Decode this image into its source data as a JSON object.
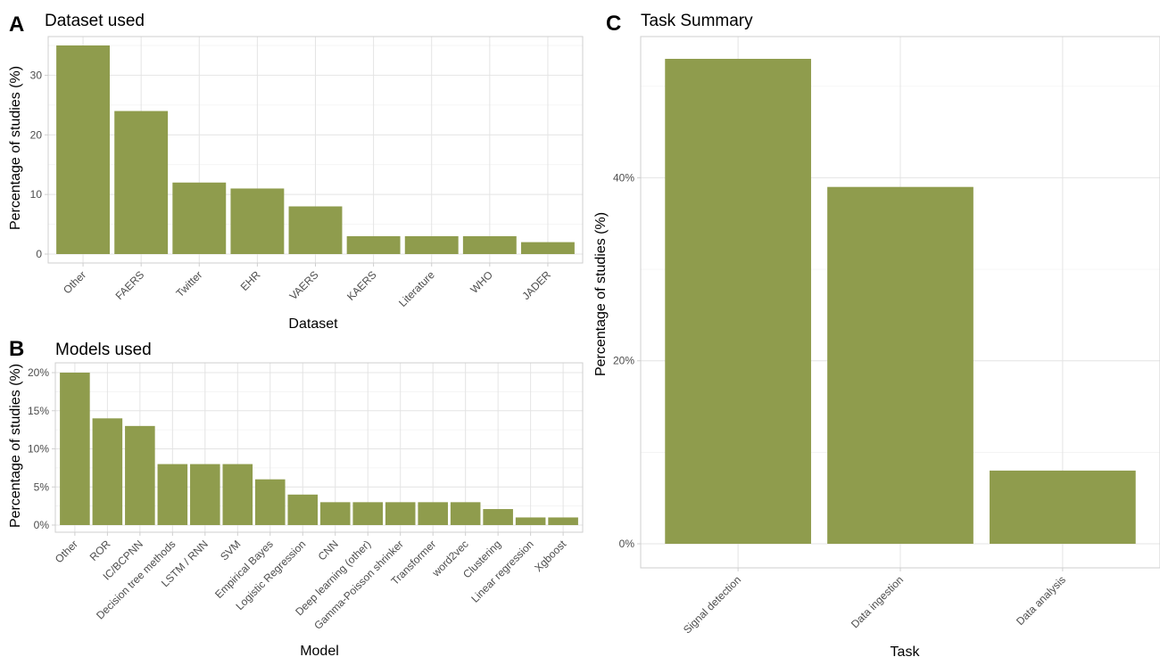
{
  "chart_data": [
    {
      "id": "A",
      "panel_letter": "A",
      "type": "bar",
      "title": "Dataset used",
      "xlabel": "Dataset",
      "ylabel": "Percentage of studies (%)",
      "categories": [
        "Other",
        "FAERS",
        "Twitter",
        "EHR",
        "VAERS",
        "KAERS",
        "Literature",
        "WHO",
        "JADER"
      ],
      "values": [
        35,
        24,
        12,
        11,
        8,
        3,
        3,
        3,
        2
      ],
      "ylim": [
        0,
        35
      ],
      "yticks": [
        0,
        10,
        20,
        30
      ],
      "ytick_labels": [
        "0",
        "10",
        "20",
        "30"
      ],
      "bar_color": "#8f9c4d",
      "grid": true
    },
    {
      "id": "B",
      "panel_letter": "B",
      "type": "bar",
      "title": "Models used",
      "xlabel": "Model",
      "ylabel": "Percentage of studies (%)",
      "categories": [
        "Other",
        "ROR",
        "IC/BCPNN",
        "Decision tree methods",
        "LSTM / RNN",
        "SVM",
        "Empirical Bayes",
        "Logistic Regression",
        "CNN",
        "Deep learning (other)",
        "Gamma-Poisson shrinker",
        "Transformer",
        "word2vec",
        "Clustering",
        "Linear regression",
        "Xgboost"
      ],
      "values": [
        20,
        14,
        13,
        8,
        8,
        8,
        6,
        4,
        3,
        3,
        3,
        3,
        3,
        2.1,
        1,
        1
      ],
      "ylim": [
        0,
        20
      ],
      "yticks": [
        0,
        5,
        10,
        15,
        20
      ],
      "ytick_labels": [
        "0%",
        "5%",
        "10%",
        "15%",
        "20%"
      ],
      "bar_color": "#8f9c4d",
      "grid": true
    },
    {
      "id": "C",
      "panel_letter": "C",
      "type": "bar",
      "title": "Task Summary",
      "xlabel": "Task",
      "ylabel": "Percentage of studies (%)",
      "categories": [
        "Signal detection",
        "Data ingestion",
        "Data analysis"
      ],
      "values": [
        53,
        39,
        8
      ],
      "ylim": [
        0,
        53
      ],
      "yticks": [
        0,
        20,
        40
      ],
      "ytick_labels": [
        "0%",
        "20%",
        "40%"
      ],
      "bar_color": "#8f9c4d",
      "grid": true
    }
  ]
}
